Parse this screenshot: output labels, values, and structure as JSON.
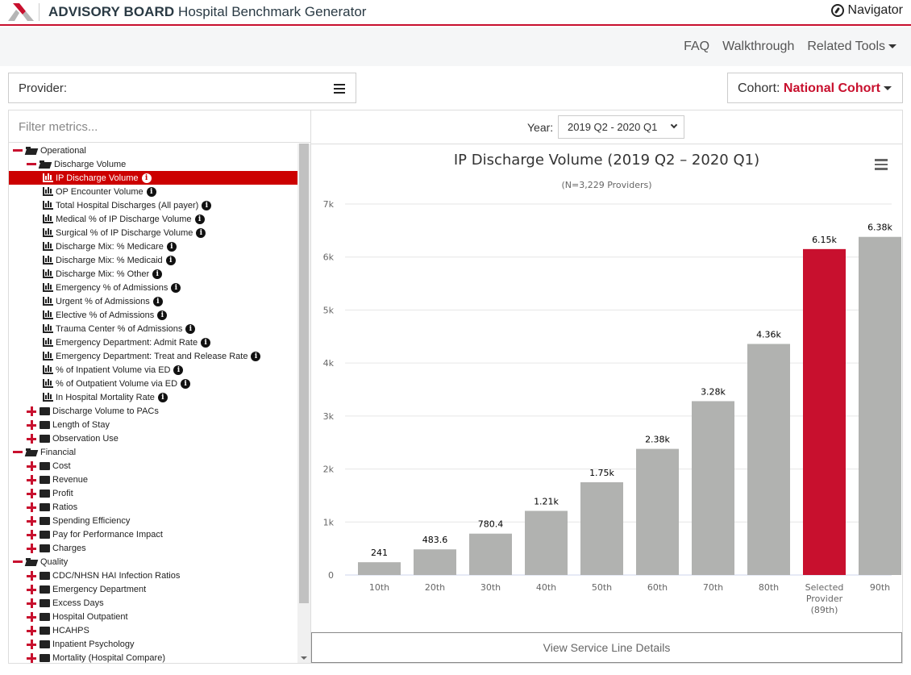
{
  "header": {
    "brand_bold": "ADVISORY BOARD",
    "app_title": "Hospital Benchmark Generator",
    "navigator_label": "Navigator",
    "accent_color": "#c8102e"
  },
  "subnav": {
    "links": [
      "FAQ",
      "Walkthrough",
      "Related Tools"
    ]
  },
  "provider": {
    "label": "Provider:",
    "value": ""
  },
  "cohort": {
    "label": "Cohort:",
    "value": "National Cohort"
  },
  "filter": {
    "placeholder": "Filter metrics..."
  },
  "tree": [
    {
      "level": 0,
      "type": "group-open",
      "label": "Operational"
    },
    {
      "level": 1,
      "type": "group-open",
      "label": "Discharge Volume"
    },
    {
      "level": 2,
      "type": "metric",
      "label": "IP Discharge Volume",
      "selected": true
    },
    {
      "level": 2,
      "type": "metric",
      "label": "OP Encounter Volume"
    },
    {
      "level": 2,
      "type": "metric",
      "label": "Total Hospital Discharges (All payer)"
    },
    {
      "level": 2,
      "type": "metric",
      "label": "Medical % of IP Discharge Volume"
    },
    {
      "level": 2,
      "type": "metric",
      "label": "Surgical % of IP Discharge Volume"
    },
    {
      "level": 2,
      "type": "metric",
      "label": "Discharge Mix: % Medicare"
    },
    {
      "level": 2,
      "type": "metric",
      "label": "Discharge Mix: % Medicaid"
    },
    {
      "level": 2,
      "type": "metric",
      "label": "Discharge Mix: % Other"
    },
    {
      "level": 2,
      "type": "metric",
      "label": "Emergency % of Admissions"
    },
    {
      "level": 2,
      "type": "metric",
      "label": "Urgent % of Admissions"
    },
    {
      "level": 2,
      "type": "metric",
      "label": "Elective % of Admissions"
    },
    {
      "level": 2,
      "type": "metric",
      "label": "Trauma Center % of Admissions"
    },
    {
      "level": 2,
      "type": "metric",
      "label": "Emergency Department: Admit Rate"
    },
    {
      "level": 2,
      "type": "metric",
      "label": "Emergency Department: Treat and Release Rate"
    },
    {
      "level": 2,
      "type": "metric",
      "label": "% of Inpatient Volume via ED"
    },
    {
      "level": 2,
      "type": "metric",
      "label": "% of Outpatient Volume via ED"
    },
    {
      "level": 2,
      "type": "metric",
      "label": "In Hospital Mortality Rate"
    },
    {
      "level": 1,
      "type": "group-closed",
      "label": "Discharge Volume to PACs"
    },
    {
      "level": 1,
      "type": "group-closed",
      "label": "Length of Stay"
    },
    {
      "level": 1,
      "type": "group-closed",
      "label": "Observation Use"
    },
    {
      "level": 0,
      "type": "group-open",
      "label": "Financial"
    },
    {
      "level": 1,
      "type": "group-closed",
      "label": "Cost"
    },
    {
      "level": 1,
      "type": "group-closed",
      "label": "Revenue"
    },
    {
      "level": 1,
      "type": "group-closed",
      "label": "Profit"
    },
    {
      "level": 1,
      "type": "group-closed",
      "label": "Ratios"
    },
    {
      "level": 1,
      "type": "group-closed",
      "label": "Spending Efficiency"
    },
    {
      "level": 1,
      "type": "group-closed",
      "label": "Pay for Performance Impact"
    },
    {
      "level": 1,
      "type": "group-closed",
      "label": "Charges"
    },
    {
      "level": 0,
      "type": "group-open",
      "label": "Quality"
    },
    {
      "level": 1,
      "type": "group-closed",
      "label": "CDC/NHSN HAI Infection Ratios"
    },
    {
      "level": 1,
      "type": "group-closed",
      "label": "Emergency Department"
    },
    {
      "level": 1,
      "type": "group-closed",
      "label": "Excess Days"
    },
    {
      "level": 1,
      "type": "group-closed",
      "label": "Hospital Outpatient"
    },
    {
      "level": 1,
      "type": "group-closed",
      "label": "HCAHPS"
    },
    {
      "level": 1,
      "type": "group-closed",
      "label": "Inpatient Psychology"
    },
    {
      "level": 1,
      "type": "group-closed",
      "label": "Mortality (Hospital Compare)"
    }
  ],
  "year": {
    "label": "Year:",
    "value": "2019 Q2 - 2020 Q1"
  },
  "service_button_label": "View Service Line Details",
  "chart_data": {
    "type": "bar",
    "title": "IP Discharge Volume (2019 Q2 – 2020 Q1)",
    "subtitle": "(N=3,229 Providers)",
    "xlabel": "",
    "ylabel": "",
    "categories": [
      "10th",
      "20th",
      "30th",
      "40th",
      "50th",
      "60th",
      "70th",
      "80th",
      "Selected Provider (89th)",
      "90th"
    ],
    "values": [
      241,
      483.6,
      780.4,
      1210,
      1750,
      2380,
      3280,
      4360,
      6150,
      6380
    ],
    "data_labels": [
      "241",
      "483.6",
      "780.4",
      "1.21k",
      "1.75k",
      "2.38k",
      "3.28k",
      "4.36k",
      "6.15k",
      "6.38k"
    ],
    "highlight_index": 8,
    "colors": {
      "default": "#b1b2b0",
      "highlight": "#c8102e"
    },
    "ylim": [
      0,
      7000
    ],
    "yticks": [
      0,
      1000,
      2000,
      3000,
      4000,
      5000,
      6000,
      7000
    ],
    "ytick_labels": [
      "0",
      "1k",
      "2k",
      "3k",
      "4k",
      "5k",
      "6k",
      "7k"
    ],
    "grid": true,
    "legend": "none"
  }
}
